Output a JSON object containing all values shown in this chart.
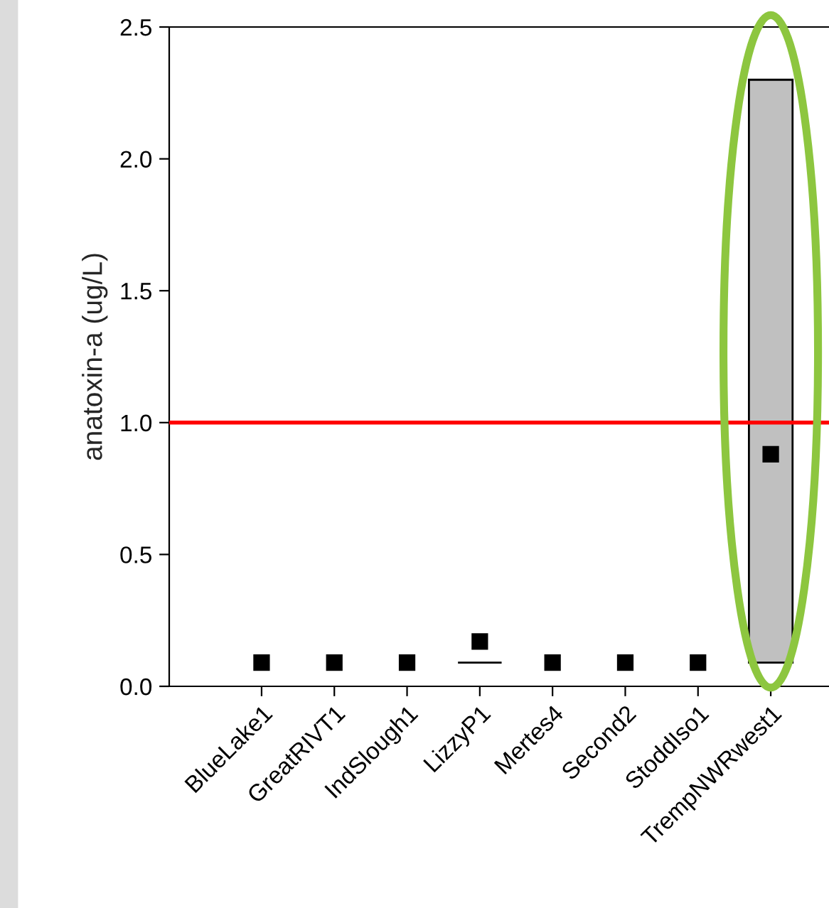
{
  "chart_data": {
    "type": "bar",
    "ylabel": "anatoxin-a (ug/L)",
    "categories": [
      "BlueLake1",
      "GreatRIVT1",
      "IndSlough1",
      "LizzyP1",
      "Mertes4",
      "Second2",
      "StoddIso1",
      "TrempNWRwest1"
    ],
    "values": [
      null,
      null,
      null,
      0,
      null,
      null,
      null,
      2.21
    ],
    "base": [
      null,
      null,
      null,
      0.09,
      null,
      null,
      null,
      0.09
    ],
    "colors": [
      "#c0c0c0",
      "#c0c0c0",
      "#c0c0c0",
      "#000000",
      "#c0c0c0",
      "#c0c0c0",
      "#c0c0c0",
      "#c0c0c0"
    ],
    "series": [
      {
        "type": "scatter",
        "color": "#000000",
        "marker": "square",
        "x": [
          "BlueLake1",
          "GreatRIVT1",
          "IndSlough1",
          "LizzyP1",
          "Mertes4",
          "Second2",
          "StoddIso1",
          "TrempNWRwest1"
        ],
        "values": [
          0.09,
          0.09,
          0.09,
          0.17,
          0.09,
          0.09,
          0.09,
          0.88
        ]
      }
    ],
    "ylim": [
      0,
      2.5
    ],
    "yticks": [
      {
        "value": 0,
        "label": "0.0"
      },
      {
        "value": 0.5,
        "label": "0.5"
      },
      {
        "value": 1,
        "label": "1.0"
      },
      {
        "value": 1.5,
        "label": "1.5"
      },
      {
        "value": 2,
        "label": "2.0"
      },
      {
        "value": 2.5,
        "label": "2.5"
      }
    ],
    "ref_lines": [
      {
        "axis": "y",
        "value": 1.0,
        "color": "#ff0000"
      }
    ],
    "grid": false
  }
}
